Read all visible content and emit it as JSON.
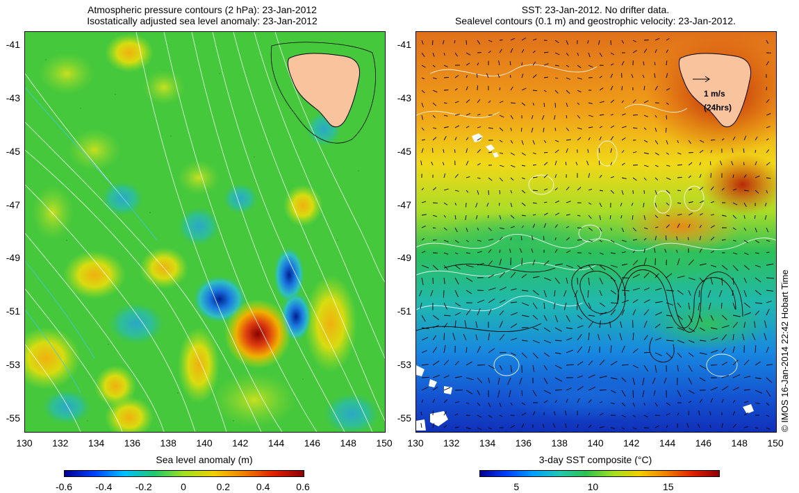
{
  "left_panel": {
    "title_line1": "Atmospheric pressure contours (2 hPa): 23-Jan-2012",
    "title_line2": "Isostatically adjusted sea level anomaly: 23-Jan-2012",
    "x_ticks": [
      "130",
      "132",
      "134",
      "136",
      "138",
      "140",
      "142",
      "144",
      "146",
      "148",
      "150"
    ],
    "y_ticks": [
      "-41",
      "-43",
      "-45",
      "-47",
      "-49",
      "-51",
      "-53",
      "-55"
    ],
    "colorbar_label": "Sea level anomaly (m)",
    "colorbar_ticks": [
      "-0.6",
      "-0.4",
      "-0.2",
      "0",
      "0.2",
      "0.4",
      "0.6"
    ],
    "colors": {
      "low": "#00008f",
      "mid": "#22c55a",
      "high": "#8f0000",
      "land": "#f9c39e"
    }
  },
  "right_panel": {
    "title_line1": "SST: 23-Jan-2012. No drifter data.",
    "title_line2": "Sealevel contours (0.1 m) and geostrophic velocity: 23-Jan-2012.",
    "x_ticks": [
      "130",
      "132",
      "134",
      "136",
      "138",
      "140",
      "142",
      "144",
      "146",
      "148",
      "150"
    ],
    "y_ticks": [
      "-41",
      "-43",
      "-45",
      "-47",
      "-49",
      "-51",
      "-53",
      "-55"
    ],
    "colorbar_label": "3-day SST composite (°C)",
    "colorbar_ticks": [
      "5",
      "10",
      "15"
    ],
    "velocity_scale": {
      "speed": "1 m/s",
      "period": "(24hrs)"
    },
    "colors": {
      "cold": "#0a1aa0",
      "warm": "#e06a10",
      "land": "#f9c39e"
    }
  },
  "credit": "© IMOS 16-Jan-2014 22:42 Hobart Time"
}
